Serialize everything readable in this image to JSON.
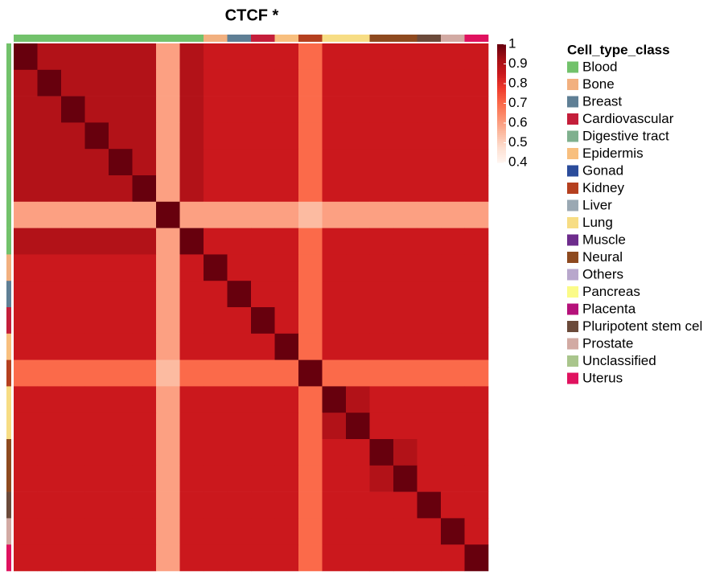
{
  "chart_data": {
    "type": "heatmap",
    "title": "CTCF *",
    "groups": [
      "Blood",
      "Blood",
      "Blood",
      "Blood",
      "Blood",
      "Blood",
      "Blood",
      "Blood",
      "Bone",
      "Breast",
      "Cardiovascular",
      "Epidermis",
      "Kidney",
      "Lung",
      "Lung",
      "Neural",
      "Neural",
      "Pluripotent stem cel",
      "Prostate",
      "Uterus"
    ],
    "values": [
      [
        1,
        0.9,
        0.9,
        0.9,
        0.9,
        0.9,
        0.6,
        0.9,
        0.85,
        0.85,
        0.85,
        0.85,
        0.7,
        0.85,
        0.85,
        0.85,
        0.85,
        0.85,
        0.85,
        0.85
      ],
      [
        0.9,
        1,
        0.9,
        0.9,
        0.9,
        0.9,
        0.6,
        0.9,
        0.85,
        0.85,
        0.85,
        0.85,
        0.7,
        0.85,
        0.85,
        0.85,
        0.85,
        0.85,
        0.85,
        0.85
      ],
      [
        0.9,
        0.9,
        1,
        0.9,
        0.9,
        0.9,
        0.6,
        0.9,
        0.85,
        0.85,
        0.85,
        0.85,
        0.7,
        0.85,
        0.85,
        0.85,
        0.85,
        0.85,
        0.85,
        0.85
      ],
      [
        0.9,
        0.9,
        0.9,
        1,
        0.9,
        0.9,
        0.6,
        0.9,
        0.85,
        0.85,
        0.85,
        0.85,
        0.7,
        0.85,
        0.85,
        0.85,
        0.85,
        0.85,
        0.85,
        0.85
      ],
      [
        0.9,
        0.9,
        0.9,
        0.9,
        1,
        0.9,
        0.6,
        0.9,
        0.85,
        0.85,
        0.85,
        0.85,
        0.7,
        0.85,
        0.85,
        0.85,
        0.85,
        0.85,
        0.85,
        0.85
      ],
      [
        0.9,
        0.9,
        0.9,
        0.9,
        0.9,
        1,
        0.6,
        0.9,
        0.85,
        0.85,
        0.85,
        0.85,
        0.7,
        0.85,
        0.85,
        0.85,
        0.85,
        0.85,
        0.85,
        0.85
      ],
      [
        0.6,
        0.6,
        0.6,
        0.6,
        0.6,
        0.6,
        1,
        0.6,
        0.6,
        0.6,
        0.6,
        0.6,
        0.55,
        0.6,
        0.6,
        0.6,
        0.6,
        0.6,
        0.6,
        0.6
      ],
      [
        0.9,
        0.9,
        0.9,
        0.9,
        0.9,
        0.9,
        0.6,
        1,
        0.85,
        0.85,
        0.85,
        0.85,
        0.7,
        0.85,
        0.85,
        0.85,
        0.85,
        0.85,
        0.85,
        0.85
      ],
      [
        0.85,
        0.85,
        0.85,
        0.85,
        0.85,
        0.85,
        0.6,
        0.85,
        1,
        0.85,
        0.85,
        0.85,
        0.7,
        0.85,
        0.85,
        0.85,
        0.85,
        0.85,
        0.85,
        0.85
      ],
      [
        0.85,
        0.85,
        0.85,
        0.85,
        0.85,
        0.85,
        0.6,
        0.85,
        0.85,
        1,
        0.85,
        0.85,
        0.7,
        0.85,
        0.85,
        0.85,
        0.85,
        0.85,
        0.85,
        0.85
      ],
      [
        0.85,
        0.85,
        0.85,
        0.85,
        0.85,
        0.85,
        0.6,
        0.85,
        0.85,
        0.85,
        1,
        0.85,
        0.7,
        0.85,
        0.85,
        0.85,
        0.85,
        0.85,
        0.85,
        0.85
      ],
      [
        0.85,
        0.85,
        0.85,
        0.85,
        0.85,
        0.85,
        0.6,
        0.85,
        0.85,
        0.85,
        0.85,
        1,
        0.7,
        0.85,
        0.85,
        0.85,
        0.85,
        0.85,
        0.85,
        0.85
      ],
      [
        0.7,
        0.7,
        0.7,
        0.7,
        0.7,
        0.7,
        0.55,
        0.7,
        0.7,
        0.7,
        0.7,
        0.7,
        1,
        0.7,
        0.7,
        0.7,
        0.7,
        0.7,
        0.7,
        0.7
      ],
      [
        0.85,
        0.85,
        0.85,
        0.85,
        0.85,
        0.85,
        0.6,
        0.85,
        0.85,
        0.85,
        0.85,
        0.85,
        0.7,
        1,
        0.9,
        0.85,
        0.85,
        0.85,
        0.85,
        0.85
      ],
      [
        0.85,
        0.85,
        0.85,
        0.85,
        0.85,
        0.85,
        0.6,
        0.85,
        0.85,
        0.85,
        0.85,
        0.85,
        0.7,
        0.9,
        1,
        0.85,
        0.85,
        0.85,
        0.85,
        0.85
      ],
      [
        0.85,
        0.85,
        0.85,
        0.85,
        0.85,
        0.85,
        0.6,
        0.85,
        0.85,
        0.85,
        0.85,
        0.85,
        0.7,
        0.85,
        0.85,
        1,
        0.9,
        0.85,
        0.85,
        0.85
      ],
      [
        0.85,
        0.85,
        0.85,
        0.85,
        0.85,
        0.85,
        0.6,
        0.85,
        0.85,
        0.85,
        0.85,
        0.85,
        0.7,
        0.85,
        0.85,
        0.9,
        1,
        0.85,
        0.85,
        0.85
      ],
      [
        0.85,
        0.85,
        0.85,
        0.85,
        0.85,
        0.85,
        0.6,
        0.85,
        0.85,
        0.85,
        0.85,
        0.85,
        0.7,
        0.85,
        0.85,
        0.85,
        0.85,
        1,
        0.85,
        0.85
      ],
      [
        0.85,
        0.85,
        0.85,
        0.85,
        0.85,
        0.85,
        0.6,
        0.85,
        0.85,
        0.85,
        0.85,
        0.85,
        0.7,
        0.85,
        0.85,
        0.85,
        0.85,
        0.85,
        1,
        0.85
      ],
      [
        0.85,
        0.85,
        0.85,
        0.85,
        0.85,
        0.85,
        0.6,
        0.85,
        0.85,
        0.85,
        0.85,
        0.85,
        0.7,
        0.85,
        0.85,
        0.85,
        0.85,
        0.85,
        0.85,
        1
      ]
    ],
    "zlim": [
      0.4,
      1
    ],
    "zticks": [
      0.4,
      0.5,
      0.6,
      0.7,
      0.8,
      0.9,
      1
    ],
    "colorscale": [
      "#fff5f0",
      "#fee0d2",
      "#fcbba1",
      "#fc9272",
      "#fb6a4a",
      "#ef3b2c",
      "#cb181d",
      "#a50f15",
      "#67000d"
    ],
    "legend_title": "Cell_type_class",
    "legend": [
      {
        "name": "Blood",
        "color": "#72c26b"
      },
      {
        "name": "Bone",
        "color": "#f2b07f"
      },
      {
        "name": "Breast",
        "color": "#5f7f95"
      },
      {
        "name": "Cardiovascular",
        "color": "#c41e3a"
      },
      {
        "name": "Digestive tract",
        "color": "#7fb08e"
      },
      {
        "name": "Epidermis",
        "color": "#f8bf7e"
      },
      {
        "name": "Gonad",
        "color": "#2b4c9b"
      },
      {
        "name": "Kidney",
        "color": "#b5401f"
      },
      {
        "name": "Liver",
        "color": "#9aa8b3"
      },
      {
        "name": "Lung",
        "color": "#f7dd84"
      },
      {
        "name": "Muscle",
        "color": "#6d2c8c"
      },
      {
        "name": "Neural",
        "color": "#8e4a1f"
      },
      {
        "name": "Others",
        "color": "#b8a7cc"
      },
      {
        "name": "Pancreas",
        "color": "#fbfb88"
      },
      {
        "name": "Placenta",
        "color": "#b5117a"
      },
      {
        "name": "Pluripotent stem cel",
        "color": "#6b4a3a"
      },
      {
        "name": "Prostate",
        "color": "#d2aaa3"
      },
      {
        "name": "Unclassified",
        "color": "#a9c58c"
      },
      {
        "name": "Uterus",
        "color": "#e0125f"
      }
    ]
  }
}
